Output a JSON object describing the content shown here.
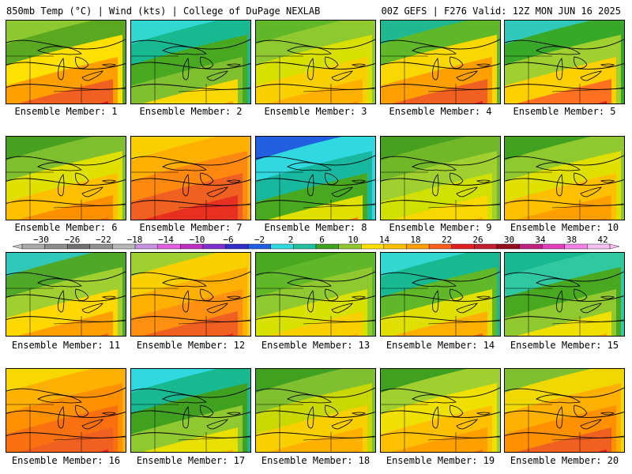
{
  "header": {
    "left": "850mb Temp (°C) | Wind (kts) | College of DuPage NEXLAB",
    "right": "00Z GEFS | F276 Valid: 12Z MON JUN 16 2025"
  },
  "caption_prefix": "Ensemble Member:",
  "members": [
    {
      "id": 1,
      "fill": [
        "#8ec830",
        "#5aa820",
        "#ffe000",
        "#ffa000",
        "#f06020",
        "#e02020"
      ]
    },
    {
      "id": 2,
      "fill": [
        "#30d8d0",
        "#18b890",
        "#48a820",
        "#80c030",
        "#f8d800",
        "#ffa000"
      ]
    },
    {
      "id": 3,
      "fill": [
        "#60b828",
        "#90c830",
        "#d8e000",
        "#f8d000",
        "#ffb000",
        "#ff9000"
      ]
    },
    {
      "id": 4,
      "fill": [
        "#20b890",
        "#60b828",
        "#f8d800",
        "#ffa000",
        "#f06020",
        "#e02020"
      ]
    },
    {
      "id": 5,
      "fill": [
        "#30c8b8",
        "#38a828",
        "#a0d030",
        "#ffd000",
        "#ff7020",
        "#e02020"
      ]
    },
    {
      "id": 6,
      "fill": [
        "#48a020",
        "#80c030",
        "#e0e000",
        "#ffc000",
        "#ff9000",
        "#f87010"
      ]
    },
    {
      "id": 7,
      "fill": [
        "#f8d000",
        "#ffb000",
        "#ff8810",
        "#f06020",
        "#e83020",
        "#e04020"
      ]
    },
    {
      "id": 8,
      "fill": [
        "#2060e0",
        "#30d8e0",
        "#18b8a0",
        "#48a820",
        "#e0e000",
        "#ff8010"
      ]
    },
    {
      "id": 9,
      "fill": [
        "#48a020",
        "#70b828",
        "#a0d030",
        "#d0e000",
        "#f8d800",
        "#ffb000"
      ]
    },
    {
      "id": 10,
      "fill": [
        "#40a020",
        "#90c830",
        "#e0e000",
        "#ffc000",
        "#ffa000",
        "#ff9000"
      ]
    },
    {
      "id": 11,
      "fill": [
        "#30c8b8",
        "#50a828",
        "#a0d030",
        "#ffd800",
        "#ffa000",
        "#f06020"
      ]
    },
    {
      "id": 12,
      "fill": [
        "#a0d030",
        "#f8d000",
        "#ffb000",
        "#ff9010",
        "#f06020",
        "#e83020"
      ]
    },
    {
      "id": 13,
      "fill": [
        "#48a820",
        "#60b828",
        "#90c830",
        "#d8e000",
        "#f8d000",
        "#ffb000"
      ]
    },
    {
      "id": 14,
      "fill": [
        "#30d8d0",
        "#18b890",
        "#60b828",
        "#e0e000",
        "#ffb000",
        "#f06020"
      ]
    },
    {
      "id": 15,
      "fill": [
        "#18b890",
        "#30c8a0",
        "#48a820",
        "#90c830",
        "#f0e000",
        "#ffb000"
      ]
    },
    {
      "id": 16,
      "fill": [
        "#f8d800",
        "#ffb000",
        "#ff9000",
        "#f87010",
        "#f06020",
        "#e02020"
      ]
    },
    {
      "id": 17,
      "fill": [
        "#30d8e0",
        "#18b890",
        "#40a020",
        "#90c830",
        "#e8e000",
        "#ffb000"
      ]
    },
    {
      "id": 18,
      "fill": [
        "#40a020",
        "#80c030",
        "#c8d800",
        "#f8d000",
        "#ffb000",
        "#ffa000"
      ]
    },
    {
      "id": 19,
      "fill": [
        "#40a020",
        "#a0d030",
        "#f0e000",
        "#ffc000",
        "#ffa000",
        "#f87010"
      ]
    },
    {
      "id": 20,
      "fill": [
        "#80c030",
        "#f0d800",
        "#ffb000",
        "#ff9000",
        "#f06020",
        "#e02020"
      ]
    }
  ],
  "colorbar": {
    "labels": [
      "−30",
      "−26",
      "−22",
      "−18",
      "−14",
      "−10",
      "−6",
      "−2",
      "2",
      "6",
      "10",
      "14",
      "18",
      "22",
      "26",
      "30",
      "34",
      "38",
      "42"
    ],
    "colors": [
      "#aaaaaa",
      "#8c8c8c",
      "#707070",
      "#909090",
      "#b8b8b8",
      "#c890e0",
      "#e060e0",
      "#c030c0",
      "#8030d0",
      "#3030c8",
      "#2060e0",
      "#30d8e0",
      "#20c0a0",
      "#40a020",
      "#90c830",
      "#ffe000",
      "#ffc000",
      "#ffa000",
      "#ff6020",
      "#e02020",
      "#c02030",
      "#901020",
      "#c02080",
      "#e040c0",
      "#f880e8",
      "#f8c0f0"
    ]
  }
}
